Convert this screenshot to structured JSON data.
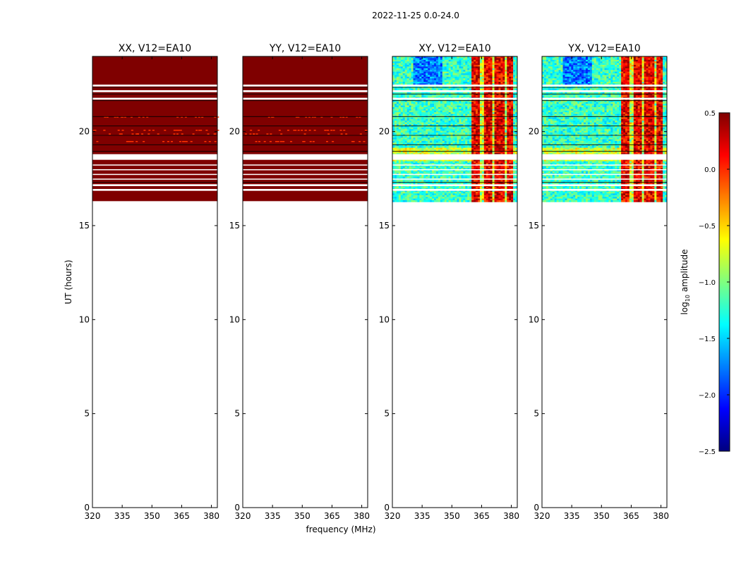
{
  "suptitle": "2022-11-25 0.0-24.0",
  "chart_data": {
    "type": "heatmap",
    "xlabel": "frequency (MHz)",
    "ylabel": "UT (hours)",
    "xlim": [
      320,
      383
    ],
    "ylim": [
      0,
      24
    ],
    "xticks": [
      320,
      335,
      350,
      365,
      380
    ],
    "yticks": [
      0,
      5,
      10,
      15,
      20
    ],
    "data_ut_range": [
      16.3,
      24.0
    ],
    "white_gaps_ut": [
      [
        22.4,
        22.5
      ],
      [
        22.1,
        22.2
      ],
      [
        21.7,
        21.8
      ],
      [
        18.5,
        18.8
      ],
      [
        18.2,
        18.25
      ],
      [
        17.95,
        18.0
      ],
      [
        17.7,
        17.75
      ],
      [
        17.45,
        17.5
      ],
      [
        17.1,
        17.2
      ],
      [
        16.85,
        16.95
      ]
    ],
    "black_lines_ut": [
      22.35,
      22.0,
      21.65,
      20.8,
      20.3,
      19.8,
      19.3,
      18.95,
      17.3
    ],
    "panels": [
      {
        "title": "XX, V12=EA10",
        "pattern": "saturated"
      },
      {
        "title": "YY, V12=EA10",
        "pattern": "saturated"
      },
      {
        "title": "XY, V12=EA10",
        "pattern": "noisy"
      },
      {
        "title": "YX, V12=EA10",
        "pattern": "noisy"
      }
    ],
    "colorbar": {
      "label": "log",
      "label_sub": "10",
      "label_rest": " amplitude",
      "range": [
        -2.5,
        0.5
      ],
      "ticks": [
        "0.5",
        "0.0",
        "−0.5",
        "−1.0",
        "−1.5",
        "−2.0",
        "−2.5"
      ],
      "tick_values": [
        0.5,
        0.0,
        -0.5,
        -1.0,
        -1.5,
        -2.0,
        -2.5
      ],
      "colormap": [
        "#00007f",
        "#0000ff",
        "#007fff",
        "#00ffff",
        "#7fff7f",
        "#ffff00",
        "#ff7f00",
        "#ff0000",
        "#7f0000"
      ]
    }
  }
}
